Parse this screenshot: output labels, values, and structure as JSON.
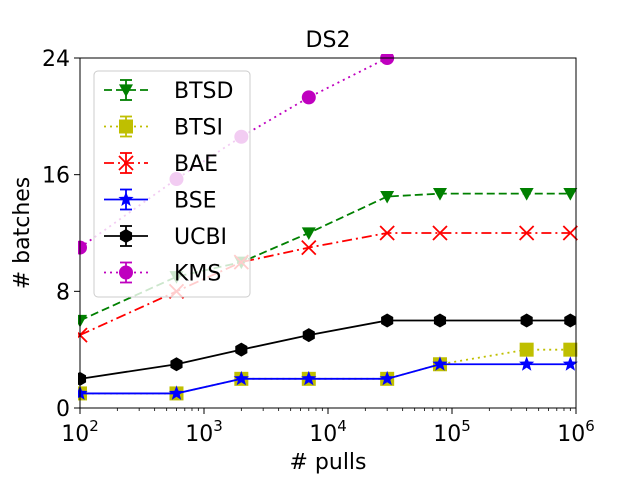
{
  "chart_data": {
    "type": "line",
    "title": "DS2",
    "xlabel": "# pulls",
    "ylabel": "# batches",
    "xscale": "log",
    "xlim": [
      100,
      1000000
    ],
    "ylim": [
      0,
      24
    ],
    "xticks": [
      100,
      1000,
      10000,
      100000,
      1000000
    ],
    "xtick_labels": [
      {
        "base": "10",
        "exp": "2"
      },
      {
        "base": "10",
        "exp": "3"
      },
      {
        "base": "10",
        "exp": "4"
      },
      {
        "base": "10",
        "exp": "5"
      },
      {
        "base": "10",
        "exp": "6"
      }
    ],
    "yticks": [
      0,
      8,
      16,
      24
    ],
    "ytick_labels": [
      "0",
      "8",
      "16",
      "24"
    ],
    "legend_position": "top-left",
    "series": [
      {
        "name": "BTSD",
        "color": "#008000",
        "marker": "triangle-down",
        "linestyle": "dashed",
        "x": [
          100,
          600,
          2000,
          7000,
          30000,
          80000,
          400000,
          900000
        ],
        "y": [
          6,
          9,
          10,
          12,
          14.5,
          14.7,
          14.7,
          14.7
        ]
      },
      {
        "name": "BTSI",
        "color": "#bfbf00",
        "marker": "square",
        "linestyle": "dotted",
        "x": [
          100,
          600,
          2000,
          7000,
          30000,
          80000,
          400000,
          900000
        ],
        "y": [
          1,
          1,
          2,
          2,
          2,
          3,
          4,
          4
        ]
      },
      {
        "name": "BAE",
        "color": "#ff0000",
        "marker": "x",
        "linestyle": "dashdot",
        "x": [
          100,
          600,
          2000,
          7000,
          30000,
          80000,
          400000,
          900000
        ],
        "y": [
          5,
          8,
          10,
          11,
          12,
          12,
          12,
          12
        ]
      },
      {
        "name": "BSE",
        "color": "#0000ff",
        "marker": "star",
        "linestyle": "solid",
        "x": [
          100,
          600,
          2000,
          7000,
          30000,
          80000,
          400000,
          900000
        ],
        "y": [
          1,
          1,
          2,
          2,
          2,
          3,
          3,
          3
        ]
      },
      {
        "name": "UCBI",
        "color": "#000000",
        "marker": "hexagon",
        "linestyle": "solid",
        "x": [
          100,
          600,
          2000,
          7000,
          30000,
          80000,
          400000,
          900000
        ],
        "y": [
          2,
          3,
          4,
          5,
          6,
          6,
          6,
          6
        ]
      },
      {
        "name": "KMS",
        "color": "#bf00bf",
        "marker": "circle",
        "linestyle": "dotted",
        "x": [
          100,
          600,
          2000,
          7000,
          30000
        ],
        "y": [
          11,
          15.7,
          18.6,
          21.3,
          24
        ]
      }
    ]
  }
}
